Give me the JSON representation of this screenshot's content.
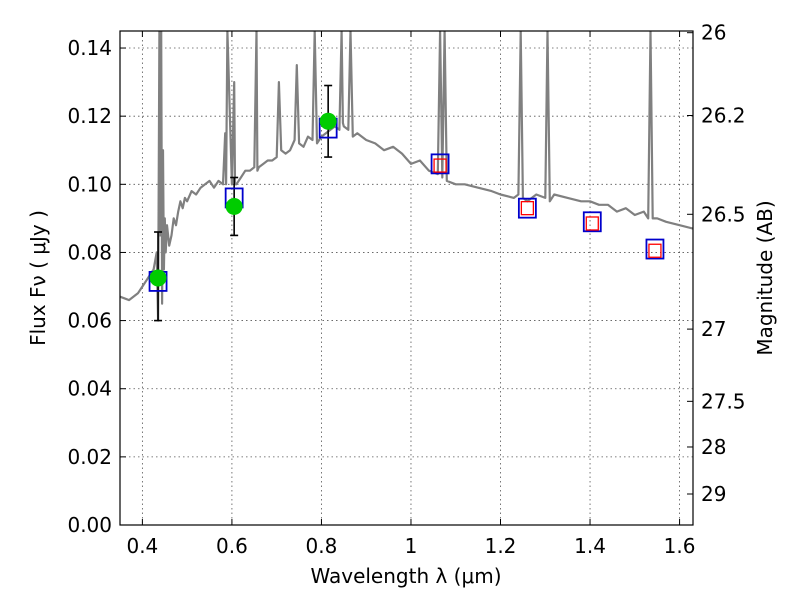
{
  "chart_data": {
    "type": "scatter",
    "title": "",
    "xlabel": "Wavelength  λ (μm)",
    "ylabel": "Flux  Fν  ( μJy )",
    "ylabel_right": "Magnitude (AB)",
    "xlim": [
      0.35,
      1.63
    ],
    "ylim": [
      0.0,
      0.145
    ],
    "grid": true,
    "xticks": [
      {
        "v": 0.4,
        "label": "0.4"
      },
      {
        "v": 0.6,
        "label": "0.6"
      },
      {
        "v": 0.8,
        "label": "0.8"
      },
      {
        "v": 1.0,
        "label": "1"
      },
      {
        "v": 1.2,
        "label": "1.2"
      },
      {
        "v": 1.4,
        "label": "1.4"
      },
      {
        "v": 1.6,
        "label": "1.6"
      }
    ],
    "yticks": [
      {
        "v": 0.0,
        "label": "0.00"
      },
      {
        "v": 0.02,
        "label": "0.02"
      },
      {
        "v": 0.04,
        "label": "0.04"
      },
      {
        "v": 0.06,
        "label": "0.06"
      },
      {
        "v": 0.08,
        "label": "0.08"
      },
      {
        "v": 0.1,
        "label": "0.10"
      },
      {
        "v": 0.12,
        "label": "0.12"
      },
      {
        "v": 0.14,
        "label": "0.14"
      }
    ],
    "right_ticks": [
      {
        "mag": 26,
        "flux": 0.1445,
        "label": "26"
      },
      {
        "mag": 26.2,
        "flux": 0.1202,
        "label": "26.2"
      },
      {
        "mag": 26.5,
        "flux": 0.0912,
        "label": "26.5"
      },
      {
        "mag": 27,
        "flux": 0.0575,
        "label": "27"
      },
      {
        "mag": 27.5,
        "flux": 0.0363,
        "label": "27.5"
      },
      {
        "mag": 28,
        "flux": 0.0229,
        "label": "28"
      },
      {
        "mag": 29,
        "flux": 0.0091,
        "label": "29"
      }
    ],
    "series": [
      {
        "kind": "line",
        "color": "#808080",
        "x": [
          0.35,
          0.37,
          0.39,
          0.4,
          0.41,
          0.42,
          0.425,
          0.432,
          0.435,
          0.438,
          0.44,
          0.442,
          0.444,
          0.446,
          0.448,
          0.45,
          0.452,
          0.455,
          0.46,
          0.465,
          0.47,
          0.475,
          0.48,
          0.485,
          0.49,
          0.495,
          0.5,
          0.51,
          0.52,
          0.53,
          0.54,
          0.55,
          0.56,
          0.57,
          0.58,
          0.585,
          0.587,
          0.59,
          0.6,
          0.605,
          0.607,
          0.61,
          0.62,
          0.63,
          0.64,
          0.65,
          0.655,
          0.657,
          0.66,
          0.67,
          0.68,
          0.69,
          0.7,
          0.705,
          0.71,
          0.72,
          0.73,
          0.74,
          0.745,
          0.75,
          0.76,
          0.77,
          0.78,
          0.785,
          0.79,
          0.8,
          0.81,
          0.82,
          0.83,
          0.84,
          0.845,
          0.848,
          0.85,
          0.86,
          0.865,
          0.87,
          0.88,
          0.9,
          0.92,
          0.94,
          0.96,
          0.98,
          1.0,
          1.02,
          1.04,
          1.06,
          1.065,
          1.07,
          1.075,
          1.08,
          1.1,
          1.12,
          1.15,
          1.18,
          1.2,
          1.23,
          1.24,
          1.245,
          1.25,
          1.26,
          1.28,
          1.3,
          1.305,
          1.31,
          1.32,
          1.35,
          1.38,
          1.4,
          1.42,
          1.44,
          1.46,
          1.48,
          1.5,
          1.52,
          1.53,
          1.535,
          1.54,
          1.55,
          1.57,
          1.6,
          1.63
        ],
        "y": [
          0.067,
          0.066,
          0.068,
          0.07,
          0.072,
          0.074,
          0.075,
          0.08,
          0.06,
          0.145,
          0.085,
          0.145,
          0.065,
          0.11,
          0.075,
          0.09,
          0.08,
          0.088,
          0.082,
          0.085,
          0.09,
          0.088,
          0.092,
          0.095,
          0.093,
          0.096,
          0.095,
          0.098,
          0.097,
          0.099,
          0.1,
          0.101,
          0.099,
          0.101,
          0.1,
          0.115,
          0.1,
          0.145,
          0.1,
          0.13,
          0.1,
          0.1,
          0.102,
          0.104,
          0.104,
          0.105,
          0.145,
          0.104,
          0.105,
          0.106,
          0.107,
          0.107,
          0.108,
          0.13,
          0.11,
          0.109,
          0.11,
          0.113,
          0.135,
          0.112,
          0.111,
          0.114,
          0.113,
          0.145,
          0.112,
          0.114,
          0.115,
          0.116,
          0.117,
          0.116,
          0.145,
          0.118,
          0.117,
          0.116,
          0.145,
          0.114,
          0.115,
          0.113,
          0.112,
          0.11,
          0.111,
          0.109,
          0.106,
          0.107,
          0.104,
          0.103,
          0.145,
          0.102,
          0.145,
          0.101,
          0.1,
          0.1,
          0.099,
          0.098,
          0.097,
          0.096,
          0.097,
          0.145,
          0.096,
          0.095,
          0.097,
          0.096,
          0.145,
          0.095,
          0.097,
          0.096,
          0.095,
          0.095,
          0.094,
          0.094,
          0.092,
          0.093,
          0.091,
          0.092,
          0.09,
          0.145,
          0.09,
          0.09,
          0.089,
          0.088,
          0.087
        ]
      },
      {
        "kind": "errorbar",
        "color": "#000000",
        "points": [
          {
            "x": 0.435,
            "lo": 0.06,
            "hi": 0.086
          },
          {
            "x": 0.605,
            "lo": 0.085,
            "hi": 0.102
          },
          {
            "x": 0.815,
            "lo": 0.108,
            "hi": 0.129
          }
        ]
      },
      {
        "kind": "blue-square",
        "color": "#0000cc",
        "x": [
          0.435,
          0.605,
          0.815,
          1.065,
          1.26,
          1.405,
          1.545
        ],
        "y": [
          0.0715,
          0.096,
          0.1165,
          0.106,
          0.093,
          0.089,
          0.081
        ]
      },
      {
        "kind": "red-square",
        "color": "#ff0000",
        "x": [
          1.065,
          1.26,
          1.405,
          1.545
        ],
        "y": [
          0.1055,
          0.093,
          0.0885,
          0.0805
        ]
      },
      {
        "kind": "green-circle",
        "color": "#00cc00",
        "x": [
          0.435,
          0.605,
          0.815
        ],
        "y": [
          0.0725,
          0.0935,
          0.1185
        ]
      }
    ]
  }
}
